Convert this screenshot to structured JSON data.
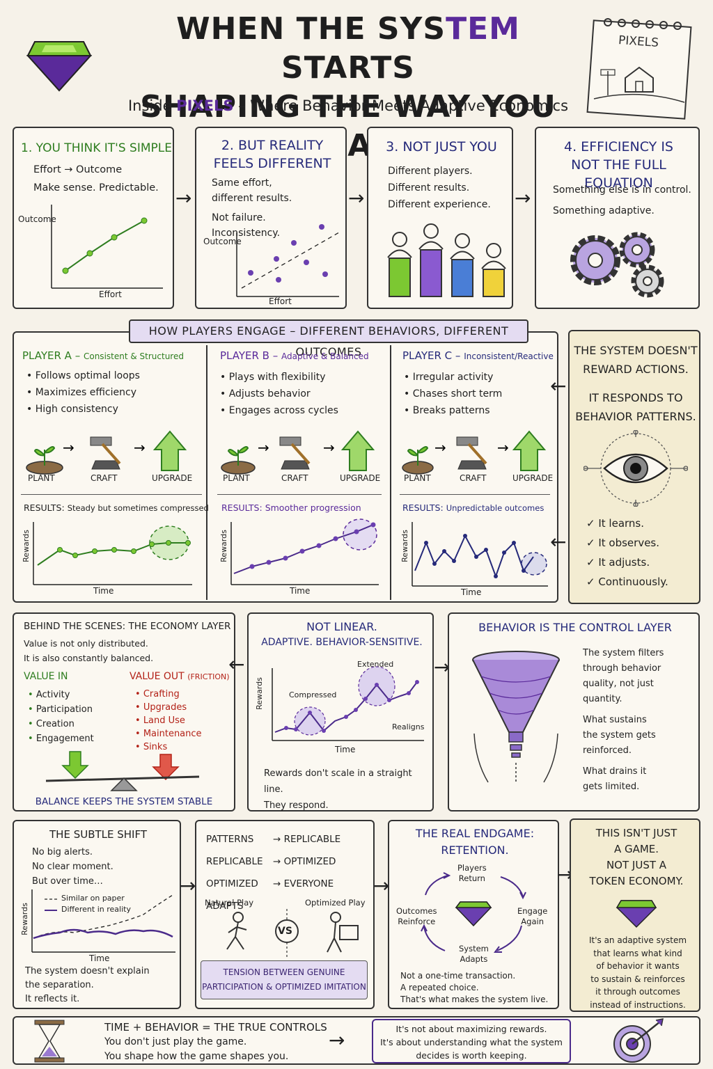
{
  "header": {
    "title_line1_a": "WHEN THE SYS",
    "title_line1_b": "TEM",
    "title_line1_c": " STARTS",
    "title_line2": "SHAPING THE WAY YOU PLAY",
    "subtitle_a": "Inside ",
    "subtitle_b": "PIXELS",
    "subtitle_c": " – Where Behavior Meets Adaptive Economics",
    "notebook_label": "PIXELS"
  },
  "row1": {
    "p1": {
      "title": "1. YOU THINK IT'S SIMPLE",
      "line1": "Effort → Outcome",
      "line2": "Make sense. Predictable.",
      "ylabel": "Outcome",
      "xlabel": "Effort"
    },
    "p2": {
      "title1": "2. BUT REALITY",
      "title2": "FEELS DIFFERENT",
      "line1": "Same effort,",
      "line2": "different results.",
      "line3": "Not failure.",
      "line4": "Inconsistency.",
      "ylabel": "Outcome",
      "xlabel": "Effort"
    },
    "p3": {
      "title": "3. NOT JUST YOU",
      "line1": "Different players.",
      "line2": "Different results.",
      "line3": "Different experience."
    },
    "p4": {
      "title1": "4. EFFICIENCY IS",
      "title2": "NOT THE FULL EQUATION",
      "line1": "Something else is in control.",
      "line2": "Something adaptive."
    }
  },
  "banner": "HOW PLAYERS ENGAGE – DIFFERENT BEHAVIORS, DIFFERENT OUTCOMES",
  "players": [
    {
      "name": "PLAYER A",
      "style": "Consistent & Structured",
      "bullets": [
        "Follows optimal loops",
        "Maximizes efficiency",
        "High consistency"
      ],
      "results_label": "RESULTS:",
      "results": "Steady but sometimes compressed"
    },
    {
      "name": "PLAYER B",
      "style": "Adaptive & Balanced",
      "bullets": [
        "Plays with flexibility",
        "Adjusts behavior",
        "Engages across cycles"
      ],
      "results_label": "RESULTS:",
      "results": "Smoother progression"
    },
    {
      "name": "PLAYER C",
      "style": "Inconsistent/Reactive",
      "bullets": [
        "Irregular activity",
        "Chases short term",
        "Breaks patterns"
      ],
      "results_label": "RESULTS:",
      "results": "Unpredictable outcomes"
    }
  ],
  "loop_labels": {
    "plant": "PLANT",
    "craft": "CRAFT",
    "upgrade": "UPGRADE"
  },
  "mini_chart": {
    "ylabel": "Rewards",
    "xlabel": "Time"
  },
  "system_panel": {
    "line1": "THE SYSTEM DOESN'T",
    "line2": "REWARD ACTIONS.",
    "line3": "IT RESPONDS TO",
    "line4": "BEHAVIOR PATTERNS.",
    "checks": [
      "It learns.",
      "It observes.",
      "It adjusts.",
      "Continuously."
    ]
  },
  "economy": {
    "title": "BEHIND THE SCENES: THE ECONOMY LAYER",
    "line1": "Value is not only distributed.",
    "line2": "It is also constantly balanced.",
    "in_title": "VALUE IN",
    "in_items": [
      "Activity",
      "Participation",
      "Creation",
      "Engagement"
    ],
    "out_title": "VALUE OUT",
    "out_note": "(FRICTION)",
    "out_items": [
      "Crafting",
      "Upgrades",
      "Land Use",
      "Maintenance",
      "Sinks"
    ],
    "footer": "BALANCE KEEPS THE SYSTEM STABLE"
  },
  "nonlinear": {
    "title1": "NOT LINEAR.",
    "title2": "ADAPTIVE. BEHAVIOR-SENSITIVE.",
    "ylabel": "Rewards",
    "xlabel": "Time",
    "ann_compressed": "Compressed",
    "ann_extended": "Extended",
    "ann_realigns": "Realigns",
    "line1": "Rewards don't scale in a straight line.",
    "line2": "They respond."
  },
  "control": {
    "title": "BEHAVIOR IS THE CONTROL LAYER",
    "p1": [
      "The system filters",
      "through behavior",
      "quality, not just",
      "quantity."
    ],
    "p2": [
      "What sustains",
      "the system gets",
      "reinforced."
    ],
    "p3": [
      "What drains it",
      "gets limited."
    ]
  },
  "shift": {
    "title": "THE SUBTLE SHIFT",
    "lines": [
      "No big alerts.",
      "No clear moment.",
      "But over time…"
    ],
    "legend1": "Similar on paper",
    "legend2": "Different in reality",
    "ylabel": "Rewards",
    "xlabel": "Time",
    "foot": [
      "The system doesn't explain",
      "the separation.",
      "It reflects it."
    ]
  },
  "patterns": {
    "rows": [
      [
        "PATTERNS",
        "REPLICABLE"
      ],
      [
        "REPLICABLE",
        "OPTIMIZED"
      ],
      [
        "OPTIMIZED",
        "EVERYONE ADAPTS"
      ]
    ],
    "natural": "Natural Play",
    "vs": "VS",
    "optimized": "Optimized Play",
    "tension1": "TENSION BETWEEN GENUINE",
    "tension2": "PARTICIPATION & OPTIMIZED IMITATION"
  },
  "endgame": {
    "title1": "THE REAL ENDGAME:",
    "title2": "RETENTION.",
    "cycle_top1": "Players",
    "cycle_top2": "Return",
    "cycle_right1": "Engage",
    "cycle_right2": "Again",
    "cycle_bottom1": "System",
    "cycle_bottom2": "Adapts",
    "cycle_left1": "Outcomes",
    "cycle_left2": "Reinforce",
    "foot": [
      "Not a one-time transaction.",
      "A repeated choice.",
      "That's what makes the system live."
    ]
  },
  "notgame": {
    "title": [
      "THIS ISN'T JUST",
      "A GAME.",
      "NOT JUST A",
      "TOKEN ECONOMY."
    ],
    "body": [
      "It's an adaptive system",
      "that learns what kind",
      "of behavior it wants",
      "to sustain & reinforces",
      "it through outcomes",
      "instead of instructions."
    ]
  },
  "footer": {
    "title": "TIME + BEHAVIOR = THE TRUE CONTROLS",
    "line1": "You don't just play the game.",
    "line2": "You shape how the game shapes you.",
    "box1": "It's not about maximizing rewards.",
    "box2": "It's about understanding what the system",
    "box3": "decides is worth keeping."
  },
  "colors": {
    "green": "#2e7d1f",
    "purple": "#5a2a9a",
    "navy": "#262a7a",
    "red": "#b32218",
    "lavender": "#e4dcf2",
    "cream": "#f3ecd2"
  }
}
